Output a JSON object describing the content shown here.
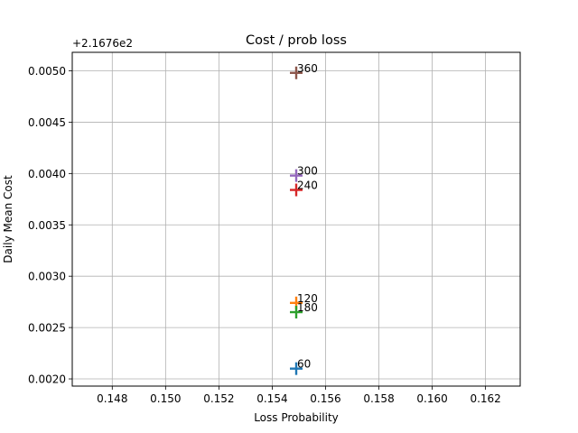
{
  "chart_data": {
    "type": "scatter",
    "title": "Cost / prob loss",
    "xlabel": "Loss Probability",
    "ylabel": "Daily Mean Cost",
    "y_offset_label": "+2.1676e2",
    "xlim": [
      0.1465,
      0.1633
    ],
    "ylim": [
      0.00193,
      0.00518
    ],
    "x_ticks": [
      0.148,
      0.15,
      0.152,
      0.154,
      0.156,
      0.158,
      0.16,
      0.162
    ],
    "x_tick_labels": [
      "0.148",
      "0.150",
      "0.152",
      "0.154",
      "0.156",
      "0.158",
      "0.160",
      "0.162"
    ],
    "y_ticks": [
      0.002,
      0.0025,
      0.003,
      0.0035,
      0.004,
      0.0045,
      0.005
    ],
    "y_tick_labels": [
      "0.0020",
      "0.0025",
      "0.0030",
      "0.0035",
      "0.0040",
      "0.0045",
      "0.0050"
    ],
    "grid": true,
    "marker": "+",
    "points": [
      {
        "label": "60",
        "x": 0.1549,
        "y": 0.0021,
        "color": "#1f77b4"
      },
      {
        "label": "120",
        "x": 0.1549,
        "y": 0.00274,
        "color": "#ff7f0e"
      },
      {
        "label": "180",
        "x": 0.1549,
        "y": 0.00265,
        "color": "#2ca02c"
      },
      {
        "label": "240",
        "x": 0.1549,
        "y": 0.00384,
        "color": "#d62728"
      },
      {
        "label": "300",
        "x": 0.1549,
        "y": 0.00398,
        "color": "#9467bd"
      },
      {
        "label": "360",
        "x": 0.1549,
        "y": 0.00498,
        "color": "#8c564b"
      }
    ]
  }
}
